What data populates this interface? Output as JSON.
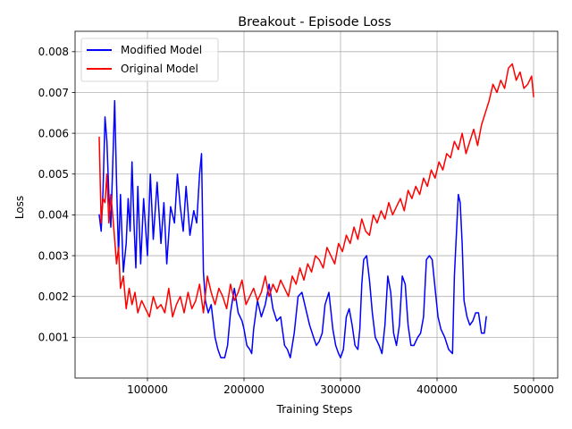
{
  "chart_data": {
    "type": "line",
    "title": "Breakout - Episode Loss",
    "xlabel": "Training Steps",
    "ylabel": "Loss",
    "xlim": [
      25000,
      525000
    ],
    "ylim": [
      0.0,
      0.0085
    ],
    "grid": true,
    "legend_position": "upper-left",
    "xticks": [
      100000,
      200000,
      300000,
      400000,
      500000
    ],
    "xtick_labels": [
      "100000",
      "200000",
      "300000",
      "400000",
      "500000"
    ],
    "yticks": [
      0.001,
      0.002,
      0.003,
      0.004,
      0.005,
      0.006,
      0.007,
      0.008
    ],
    "ytick_labels": [
      "0.001",
      "0.002",
      "0.003",
      "0.004",
      "0.005",
      "0.006",
      "0.007",
      "0.008"
    ],
    "series": [
      {
        "name": "Modified Model",
        "color": "#0000ff",
        "x": [
          50000,
          52000,
          54000,
          56000,
          58000,
          60000,
          62000,
          64000,
          66000,
          68000,
          70000,
          72000,
          75000,
          78000,
          80000,
          82000,
          84000,
          86000,
          88000,
          90000,
          93000,
          96000,
          100000,
          103000,
          106000,
          110000,
          114000,
          117000,
          120000,
          124000,
          128000,
          131000,
          134000,
          137000,
          140000,
          144000,
          148000,
          151000,
          154000,
          156000,
          158000,
          160000,
          163000,
          166000,
          170000,
          173000,
          176000,
          180000,
          183000,
          186000,
          190000,
          194000,
          198000,
          200000,
          203000,
          206000,
          208000,
          210000,
          214000,
          218000,
          222000,
          226000,
          230000,
          234000,
          238000,
          242000,
          245000,
          248000,
          252000,
          256000,
          260000,
          264000,
          268000,
          272000,
          275000,
          278000,
          281000,
          284000,
          288000,
          292000,
          295000,
          298000,
          300000,
          303000,
          306000,
          309000,
          312000,
          315000,
          318000,
          320000,
          322000,
          324000,
          327000,
          330000,
          333000,
          336000,
          340000,
          343000,
          346000,
          349000,
          352000,
          355000,
          358000,
          361000,
          364000,
          367000,
          370000,
          373000,
          376000,
          380000,
          383000,
          386000,
          389000,
          392000,
          395000,
          398000,
          401000,
          404000,
          408000,
          412000,
          416000,
          418000,
          420000,
          422000,
          424000,
          426000,
          428000,
          431000,
          434000,
          437000,
          440000,
          443000,
          446000,
          449000,
          451000
        ],
        "y": [
          0.004,
          0.0036,
          0.0046,
          0.0064,
          0.0058,
          0.0045,
          0.0037,
          0.0052,
          0.0068,
          0.0048,
          0.003,
          0.0045,
          0.0026,
          0.0033,
          0.0044,
          0.0036,
          0.0053,
          0.0038,
          0.0027,
          0.0047,
          0.0028,
          0.0044,
          0.003,
          0.005,
          0.0034,
          0.0048,
          0.0033,
          0.0043,
          0.0028,
          0.0042,
          0.0038,
          0.005,
          0.0042,
          0.0036,
          0.0047,
          0.0035,
          0.0041,
          0.0038,
          0.005,
          0.0055,
          0.0026,
          0.0019,
          0.0016,
          0.0018,
          0.001,
          0.0007,
          0.0005,
          0.0005,
          0.0008,
          0.0016,
          0.0022,
          0.0016,
          0.0014,
          0.0012,
          0.0008,
          0.0007,
          0.0006,
          0.0012,
          0.0019,
          0.0015,
          0.0018,
          0.0023,
          0.0017,
          0.0014,
          0.0015,
          0.0008,
          0.0007,
          0.0005,
          0.0011,
          0.002,
          0.0021,
          0.0017,
          0.0013,
          0.001,
          0.0008,
          0.0009,
          0.0011,
          0.0018,
          0.0021,
          0.0012,
          0.0008,
          0.0006,
          0.0005,
          0.0007,
          0.0015,
          0.0017,
          0.0013,
          0.0008,
          0.0007,
          0.0012,
          0.0023,
          0.0029,
          0.003,
          0.0024,
          0.0016,
          0.001,
          0.0008,
          0.0006,
          0.0013,
          0.0025,
          0.0021,
          0.0011,
          0.0008,
          0.0013,
          0.0025,
          0.0023,
          0.0013,
          0.0008,
          0.0008,
          0.001,
          0.0011,
          0.0015,
          0.0029,
          0.003,
          0.0029,
          0.0022,
          0.0015,
          0.0012,
          0.001,
          0.0007,
          0.0006,
          0.0025,
          0.0035,
          0.0045,
          0.0043,
          0.0033,
          0.0019,
          0.0015,
          0.0013,
          0.0014,
          0.0016,
          0.0016,
          0.0011,
          0.0011,
          0.0015
        ]
      },
      {
        "name": "Original Model",
        "color": "#ff0000",
        "x": [
          50000,
          52000,
          54000,
          56000,
          58000,
          60000,
          62000,
          64000,
          66000,
          68000,
          70000,
          72000,
          75000,
          78000,
          81000,
          84000,
          87000,
          90000,
          94000,
          98000,
          102000,
          106000,
          110000,
          114000,
          118000,
          122000,
          126000,
          130000,
          134000,
          138000,
          142000,
          146000,
          150000,
          154000,
          158000,
          162000,
          166000,
          170000,
          174000,
          178000,
          182000,
          186000,
          190000,
          194000,
          198000,
          202000,
          206000,
          210000,
          214000,
          218000,
          222000,
          226000,
          230000,
          234000,
          238000,
          242000,
          246000,
          250000,
          254000,
          258000,
          262000,
          266000,
          270000,
          274000,
          278000,
          282000,
          286000,
          290000,
          294000,
          298000,
          302000,
          306000,
          310000,
          314000,
          318000,
          322000,
          326000,
          330000,
          334000,
          338000,
          342000,
          346000,
          350000,
          354000,
          358000,
          362000,
          366000,
          370000,
          374000,
          378000,
          382000,
          386000,
          390000,
          394000,
          398000,
          402000,
          406000,
          410000,
          414000,
          418000,
          422000,
          426000,
          430000,
          434000,
          438000,
          442000,
          446000,
          450000,
          454000,
          458000,
          462000,
          466000,
          470000,
          474000,
          478000,
          482000,
          486000,
          490000,
          494000,
          498000,
          500000
        ],
        "y": [
          0.0059,
          0.0038,
          0.0044,
          0.0043,
          0.005,
          0.0038,
          0.0045,
          0.004,
          0.0034,
          0.0028,
          0.0032,
          0.0022,
          0.0025,
          0.0017,
          0.0022,
          0.0018,
          0.0021,
          0.0016,
          0.0019,
          0.0017,
          0.0015,
          0.002,
          0.0017,
          0.0018,
          0.0016,
          0.0022,
          0.0015,
          0.0018,
          0.002,
          0.0016,
          0.0021,
          0.0017,
          0.0019,
          0.0023,
          0.0016,
          0.0025,
          0.0021,
          0.0018,
          0.0022,
          0.002,
          0.0017,
          0.0023,
          0.0019,
          0.0021,
          0.0024,
          0.0018,
          0.002,
          0.0022,
          0.0019,
          0.0021,
          0.0025,
          0.002,
          0.0023,
          0.0021,
          0.0024,
          0.0022,
          0.002,
          0.0025,
          0.0023,
          0.0027,
          0.0024,
          0.0028,
          0.0026,
          0.003,
          0.0029,
          0.0027,
          0.0032,
          0.003,
          0.0028,
          0.0033,
          0.0031,
          0.0035,
          0.0033,
          0.0037,
          0.0034,
          0.0039,
          0.0036,
          0.0035,
          0.004,
          0.0038,
          0.0041,
          0.0039,
          0.0043,
          0.004,
          0.0042,
          0.0044,
          0.0041,
          0.0046,
          0.0044,
          0.0047,
          0.0045,
          0.0049,
          0.0047,
          0.0051,
          0.0049,
          0.0053,
          0.0051,
          0.0055,
          0.0054,
          0.0058,
          0.0056,
          0.006,
          0.0055,
          0.0058,
          0.0061,
          0.0057,
          0.0062,
          0.0065,
          0.0068,
          0.0072,
          0.007,
          0.0073,
          0.0071,
          0.0076,
          0.0077,
          0.0073,
          0.0075,
          0.0071,
          0.0072,
          0.0074,
          0.0069
        ]
      }
    ]
  }
}
